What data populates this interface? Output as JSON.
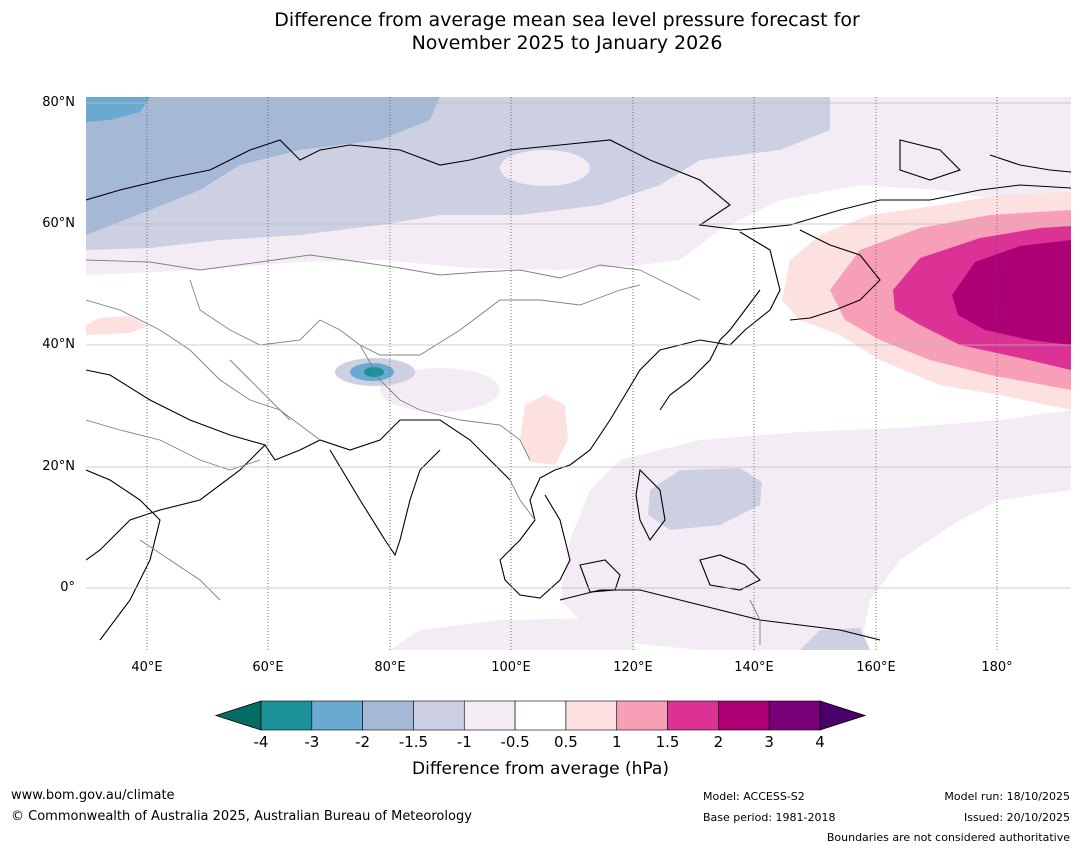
{
  "title": {
    "line1": "Difference from average mean sea level pressure forecast for",
    "line2": "November 2025 to January 2026"
  },
  "map": {
    "lat_labels": [
      "80°N",
      "60°N",
      "40°N",
      "20°N",
      "0°"
    ],
    "lon_labels": [
      "40°E",
      "60°E",
      "80°E",
      "100°E",
      "120°E",
      "140°E",
      "160°E",
      "180°"
    ],
    "colors": {
      "land_outline": "#000000",
      "border_line": "#808080",
      "grid_line": "#999999"
    }
  },
  "colorbar": {
    "ticks": [
      "-4",
      "-3",
      "-2",
      "-1.5",
      "-1",
      "-0.5",
      "0.5",
      "1",
      "1.5",
      "2",
      "3",
      "4"
    ],
    "colors": [
      "#056e64",
      "#1a9298",
      "#6aa9d1",
      "#a5b9d6",
      "#cdd0e3",
      "#f3ecf5",
      "#ffffff",
      "#fde0e0",
      "#f89fb8",
      "#dc3296",
      "#ad0077",
      "#7a0077",
      "#4a0068"
    ],
    "label": "Difference from average (hPa)"
  },
  "footer": {
    "website": "www.bom.gov.au/climate",
    "copyright": "© Commonwealth of Australia 2025, Australian Bureau of Meteorology",
    "model": "Model: ACCESS-S2",
    "base_period": "Base period: 1981-2018",
    "model_run": "Model run: 18/10/2025",
    "issued": "Issued: 20/10/2025",
    "disclaimer": "Boundaries are not considered authoritative"
  }
}
